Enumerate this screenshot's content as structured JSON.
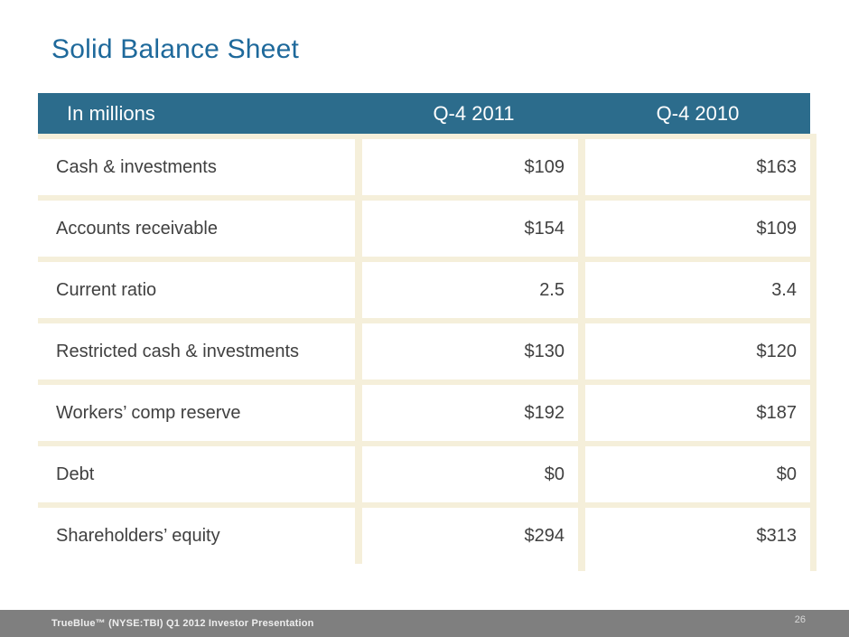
{
  "slide": {
    "title": "Solid Balance Sheet",
    "footer": {
      "text": "TrueBlue™ (NYSE:TBI) Q1 2012 Investor Presentation",
      "page_number": "26"
    },
    "colors": {
      "title_blue": "#1e699b",
      "table_header_bg": "#2c6c8c",
      "table_border_cream": "#f5efda",
      "cell_text": "#404040",
      "footer_bg": "#7f7f7f"
    }
  },
  "table": {
    "columns": [
      "In millions",
      "Q-4 2011",
      "Q-4 2010"
    ],
    "rows": [
      {
        "label": "Cash & investments",
        "q4_2011": "$109",
        "q4_2010": "$163"
      },
      {
        "label": "Accounts receivable",
        "q4_2011": "$154",
        "q4_2010": "$109"
      },
      {
        "label": "Current ratio",
        "q4_2011": "2.5",
        "q4_2010": "3.4"
      },
      {
        "label": "Restricted cash & investments",
        "q4_2011": "$130",
        "q4_2010": "$120"
      },
      {
        "label": "Workers’ comp reserve",
        "q4_2011": "$192",
        "q4_2010": "$187"
      },
      {
        "label": "Debt",
        "q4_2011": "$0",
        "q4_2010": "$0"
      },
      {
        "label": "Shareholders’ equity",
        "q4_2011": "$294",
        "q4_2010": "$313"
      }
    ]
  }
}
